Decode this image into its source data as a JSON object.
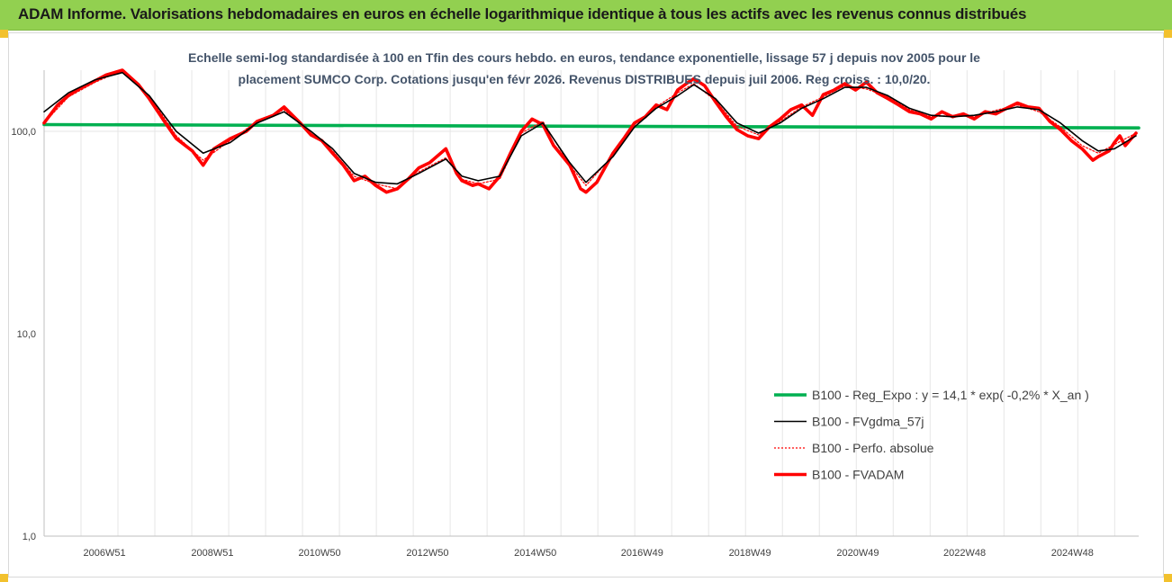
{
  "title": "ADAM Informe. Valorisations hebdomadaires en euros en échelle logarithmique identique à tous les actifs avec les revenus connus distribués",
  "chart_data": {
    "type": "line",
    "title": "ADAM Informe. Valorisations hebdomadaires en euros en échelle logarithmique identique à tous les actifs avec les revenus connus distribués",
    "subtitle_lines": [
      "Echelle semi-log standardisée à 100 en Tfin des cours hebdo. en euros, tendance exponentielle, lissage 57 j depuis nov 2005 pour le",
      "placement SUMCO Corp. Cotations jusqu'en févr 2026. Revenus DISTRIBUES depuis juil 2006. Reg croiss. : 10,0/20."
    ],
    "y_scale": "log",
    "ylim": [
      1,
      200
    ],
    "y_ticks": [
      {
        "value": 100,
        "label": "100,0"
      },
      {
        "value": 10,
        "label": "10,0"
      },
      {
        "value": 1,
        "label": "1,0"
      }
    ],
    "xlim": [
      2005.85,
      2026.15
    ],
    "x_ticks": [
      {
        "value": 2006.97,
        "label": "2006W51"
      },
      {
        "value": 2008.97,
        "label": "2008W51"
      },
      {
        "value": 2010.96,
        "label": "2010W50"
      },
      {
        "value": 2012.96,
        "label": "2012W50"
      },
      {
        "value": 2014.96,
        "label": "2014W50"
      },
      {
        "value": 2016.94,
        "label": "2016W49"
      },
      {
        "value": 2018.94,
        "label": "2018W49"
      },
      {
        "value": 2020.94,
        "label": "2020W49"
      },
      {
        "value": 2022.92,
        "label": "2022W48"
      },
      {
        "value": 2024.92,
        "label": "2024W48"
      }
    ],
    "grid": "vertical",
    "legend_position": "right",
    "series": [
      {
        "name": "B100 - Reg_Expo : y = 14,1 * exp( -0,2% *  X_an )",
        "color": "#00b050",
        "style": "thick",
        "points": [
          [
            2005.85,
            108
          ],
          [
            2026.15,
            104
          ]
        ]
      },
      {
        "name": "B100 - FVgdma_57j",
        "color": "#000000",
        "style": "thin",
        "points": [
          [
            2005.85,
            125
          ],
          [
            2006.3,
            155
          ],
          [
            2006.8,
            180
          ],
          [
            2007.3,
            195
          ],
          [
            2007.8,
            150
          ],
          [
            2008.3,
            100
          ],
          [
            2008.8,
            78
          ],
          [
            2009.3,
            88
          ],
          [
            2009.8,
            110
          ],
          [
            2010.3,
            125
          ],
          [
            2010.8,
            100
          ],
          [
            2011.2,
            82
          ],
          [
            2011.6,
            62
          ],
          [
            2012.0,
            56
          ],
          [
            2012.4,
            55
          ],
          [
            2012.8,
            62
          ],
          [
            2013.3,
            73
          ],
          [
            2013.6,
            60
          ],
          [
            2013.9,
            57
          ],
          [
            2014.3,
            60
          ],
          [
            2014.7,
            95
          ],
          [
            2015.1,
            110
          ],
          [
            2015.6,
            70
          ],
          [
            2015.9,
            56
          ],
          [
            2016.4,
            75
          ],
          [
            2016.8,
            105
          ],
          [
            2017.2,
            130
          ],
          [
            2017.6,
            150
          ],
          [
            2017.9,
            170
          ],
          [
            2018.3,
            145
          ],
          [
            2018.7,
            110
          ],
          [
            2019.1,
            98
          ],
          [
            2019.5,
            110
          ],
          [
            2019.9,
            130
          ],
          [
            2020.3,
            145
          ],
          [
            2020.7,
            165
          ],
          [
            2021.1,
            165
          ],
          [
            2021.5,
            150
          ],
          [
            2021.9,
            130
          ],
          [
            2022.3,
            120
          ],
          [
            2022.7,
            118
          ],
          [
            2023.1,
            120
          ],
          [
            2023.5,
            125
          ],
          [
            2023.9,
            132
          ],
          [
            2024.3,
            128
          ],
          [
            2024.7,
            110
          ],
          [
            2025.1,
            90
          ],
          [
            2025.4,
            80
          ],
          [
            2025.7,
            82
          ],
          [
            2026.1,
            95
          ]
        ]
      },
      {
        "name": "B100 - Perfo. absolue",
        "color": "#ff0000",
        "style": "dotted",
        "points": [
          [
            2005.85,
            110
          ],
          [
            2006.3,
            148
          ],
          [
            2006.8,
            175
          ],
          [
            2007.3,
            200
          ],
          [
            2007.8,
            150
          ],
          [
            2008.3,
            95
          ],
          [
            2008.8,
            72
          ],
          [
            2009.3,
            90
          ],
          [
            2009.8,
            112
          ],
          [
            2010.3,
            128
          ],
          [
            2010.8,
            98
          ],
          [
            2011.2,
            80
          ],
          [
            2011.6,
            60
          ],
          [
            2012.0,
            55
          ],
          [
            2012.4,
            52
          ],
          [
            2012.8,
            63
          ],
          [
            2013.3,
            74
          ],
          [
            2013.6,
            58
          ],
          [
            2013.9,
            55
          ],
          [
            2014.3,
            58
          ],
          [
            2014.7,
            98
          ],
          [
            2015.1,
            112
          ],
          [
            2015.6,
            68
          ],
          [
            2015.9,
            54
          ],
          [
            2016.4,
            76
          ],
          [
            2016.8,
            108
          ],
          [
            2017.2,
            132
          ],
          [
            2017.6,
            155
          ],
          [
            2017.9,
            172
          ],
          [
            2018.3,
            142
          ],
          [
            2018.7,
            106
          ],
          [
            2019.1,
            96
          ],
          [
            2019.5,
            112
          ],
          [
            2019.9,
            132
          ],
          [
            2020.3,
            148
          ],
          [
            2020.7,
            168
          ],
          [
            2021.1,
            162
          ],
          [
            2021.5,
            148
          ],
          [
            2021.9,
            128
          ],
          [
            2022.3,
            118
          ],
          [
            2022.7,
            120
          ],
          [
            2023.1,
            118
          ],
          [
            2023.5,
            127
          ],
          [
            2023.9,
            135
          ],
          [
            2024.3,
            125
          ],
          [
            2024.7,
            105
          ],
          [
            2025.1,
            85
          ],
          [
            2025.4,
            78
          ],
          [
            2025.7,
            86
          ],
          [
            2026.1,
            98
          ]
        ]
      },
      {
        "name": "B100 - FVADAM",
        "color": "#ff0000",
        "style": "thick",
        "points": [
          [
            2005.85,
            110
          ],
          [
            2006.1,
            135
          ],
          [
            2006.3,
            150
          ],
          [
            2006.5,
            162
          ],
          [
            2006.8,
            178
          ],
          [
            2007.0,
            190
          ],
          [
            2007.3,
            205
          ],
          [
            2007.6,
            170
          ],
          [
            2007.8,
            145
          ],
          [
            2008.1,
            110
          ],
          [
            2008.3,
            92
          ],
          [
            2008.6,
            80
          ],
          [
            2008.8,
            68
          ],
          [
            2009.0,
            82
          ],
          [
            2009.3,
            92
          ],
          [
            2009.6,
            100
          ],
          [
            2009.8,
            112
          ],
          [
            2010.1,
            120
          ],
          [
            2010.3,
            132
          ],
          [
            2010.6,
            110
          ],
          [
            2010.8,
            96
          ],
          [
            2011.0,
            90
          ],
          [
            2011.2,
            78
          ],
          [
            2011.4,
            68
          ],
          [
            2011.6,
            57
          ],
          [
            2011.8,
            60
          ],
          [
            2012.0,
            54
          ],
          [
            2012.2,
            50
          ],
          [
            2012.4,
            52
          ],
          [
            2012.6,
            58
          ],
          [
            2012.8,
            66
          ],
          [
            2013.0,
            70
          ],
          [
            2013.3,
            82
          ],
          [
            2013.5,
            62
          ],
          [
            2013.6,
            57
          ],
          [
            2013.8,
            54
          ],
          [
            2013.9,
            55
          ],
          [
            2014.1,
            52
          ],
          [
            2014.3,
            60
          ],
          [
            2014.5,
            78
          ],
          [
            2014.7,
            100
          ],
          [
            2014.9,
            115
          ],
          [
            2015.1,
            108
          ],
          [
            2015.3,
            85
          ],
          [
            2015.6,
            68
          ],
          [
            2015.8,
            52
          ],
          [
            2015.9,
            50
          ],
          [
            2016.1,
            56
          ],
          [
            2016.4,
            78
          ],
          [
            2016.6,
            92
          ],
          [
            2016.8,
            110
          ],
          [
            2017.0,
            118
          ],
          [
            2017.2,
            135
          ],
          [
            2017.4,
            128
          ],
          [
            2017.6,
            160
          ],
          [
            2017.8,
            175
          ],
          [
            2017.9,
            182
          ],
          [
            2018.1,
            168
          ],
          [
            2018.3,
            140
          ],
          [
            2018.5,
            118
          ],
          [
            2018.7,
            102
          ],
          [
            2018.9,
            95
          ],
          [
            2019.1,
            92
          ],
          [
            2019.3,
            105
          ],
          [
            2019.5,
            115
          ],
          [
            2019.7,
            128
          ],
          [
            2019.9,
            135
          ],
          [
            2020.1,
            120
          ],
          [
            2020.3,
            152
          ],
          [
            2020.5,
            160
          ],
          [
            2020.7,
            172
          ],
          [
            2020.9,
            160
          ],
          [
            2021.1,
            175
          ],
          [
            2021.3,
            155
          ],
          [
            2021.5,
            145
          ],
          [
            2021.7,
            135
          ],
          [
            2021.9,
            125
          ],
          [
            2022.1,
            122
          ],
          [
            2022.3,
            115
          ],
          [
            2022.5,
            125
          ],
          [
            2022.7,
            118
          ],
          [
            2022.9,
            122
          ],
          [
            2023.1,
            115
          ],
          [
            2023.3,
            125
          ],
          [
            2023.5,
            122
          ],
          [
            2023.7,
            130
          ],
          [
            2023.9,
            138
          ],
          [
            2024.1,
            132
          ],
          [
            2024.3,
            130
          ],
          [
            2024.5,
            112
          ],
          [
            2024.7,
            102
          ],
          [
            2024.9,
            90
          ],
          [
            2025.1,
            82
          ],
          [
            2025.3,
            72
          ],
          [
            2025.4,
            75
          ],
          [
            2025.6,
            80
          ],
          [
            2025.7,
            88
          ],
          [
            2025.8,
            95
          ],
          [
            2025.9,
            85
          ],
          [
            2026.1,
            98
          ]
        ]
      }
    ]
  }
}
